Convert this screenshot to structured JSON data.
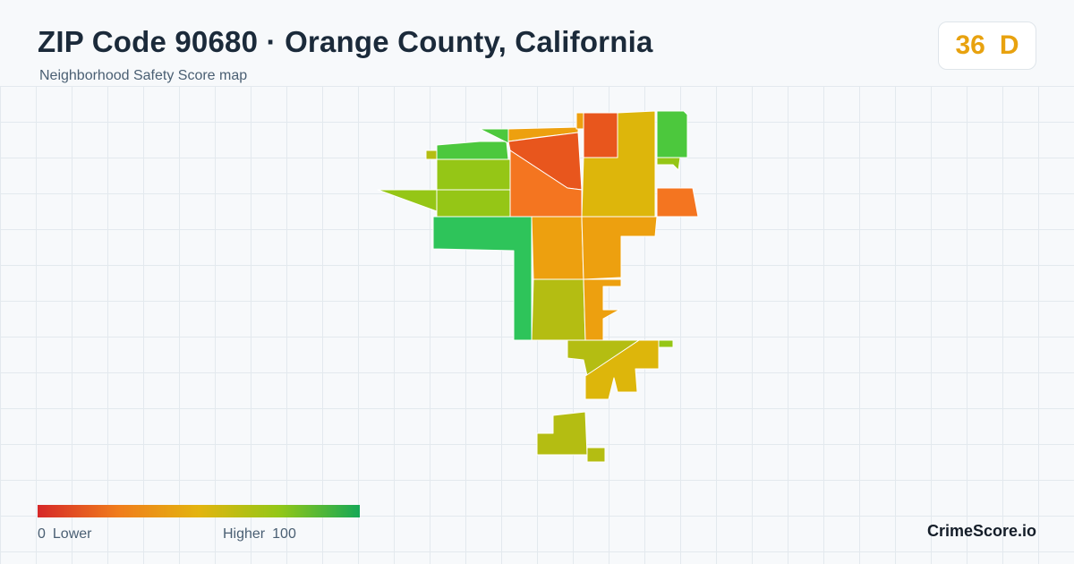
{
  "header": {
    "title": "ZIP Code 90680 · Orange County, California",
    "subtitle": "Neighborhood Safety Score map"
  },
  "score_badge": {
    "score": "36",
    "grade": "D",
    "color": "#e8a20f"
  },
  "legend": {
    "min": "0",
    "low_label": "Lower",
    "high_label": "Higher",
    "max": "100",
    "gradient_colors": [
      "#d62828",
      "#f07d1c",
      "#e3b40f",
      "#93c717",
      "#16a856"
    ]
  },
  "brand": "CrimeScore.io",
  "map": {
    "region_colors": {
      "red_orange": "#e8561d",
      "orange": "#f47520",
      "amber": "#eda00f",
      "yellow": "#ddb60b",
      "yellow_green": "#b4bd12",
      "lime": "#95c616",
      "green": "#4cc83d",
      "bright_green": "#2ec45a"
    }
  }
}
